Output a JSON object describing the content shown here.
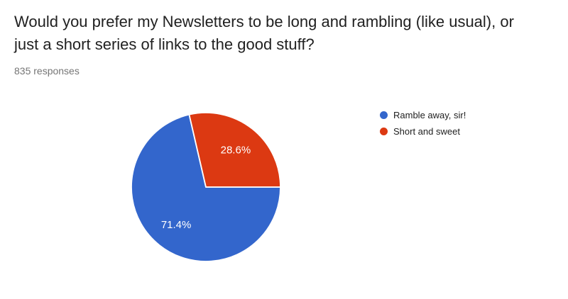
{
  "page": {
    "background": "#ffffff"
  },
  "header": {
    "title_lines": [
      "Would you prefer my Newsletters to be long and rambling (like usual), or",
      "just a short series of links to the good stuff?"
    ],
    "responses_label": "835 responses"
  },
  "chart_data": {
    "type": "pie",
    "title": "Would you prefer my Newsletters to be long and rambling (like usual), or just a short series of links to the good stuff?",
    "subtitle": "835 responses",
    "total_responses": 835,
    "labels": [
      "Ramble away, sir!",
      "Short and sweet"
    ],
    "values": [
      71.4,
      28.6
    ],
    "slice_labels": [
      "71.4%",
      "28.6%"
    ],
    "colors": [
      "#3366cc",
      "#dc3912"
    ],
    "slice_label_color": "#ffffff",
    "slice_border_color": "#ffffff",
    "start_angle_deg": 0,
    "direction": "clockwise",
    "label_radius_ratio": 0.64,
    "legend_position": "right"
  }
}
